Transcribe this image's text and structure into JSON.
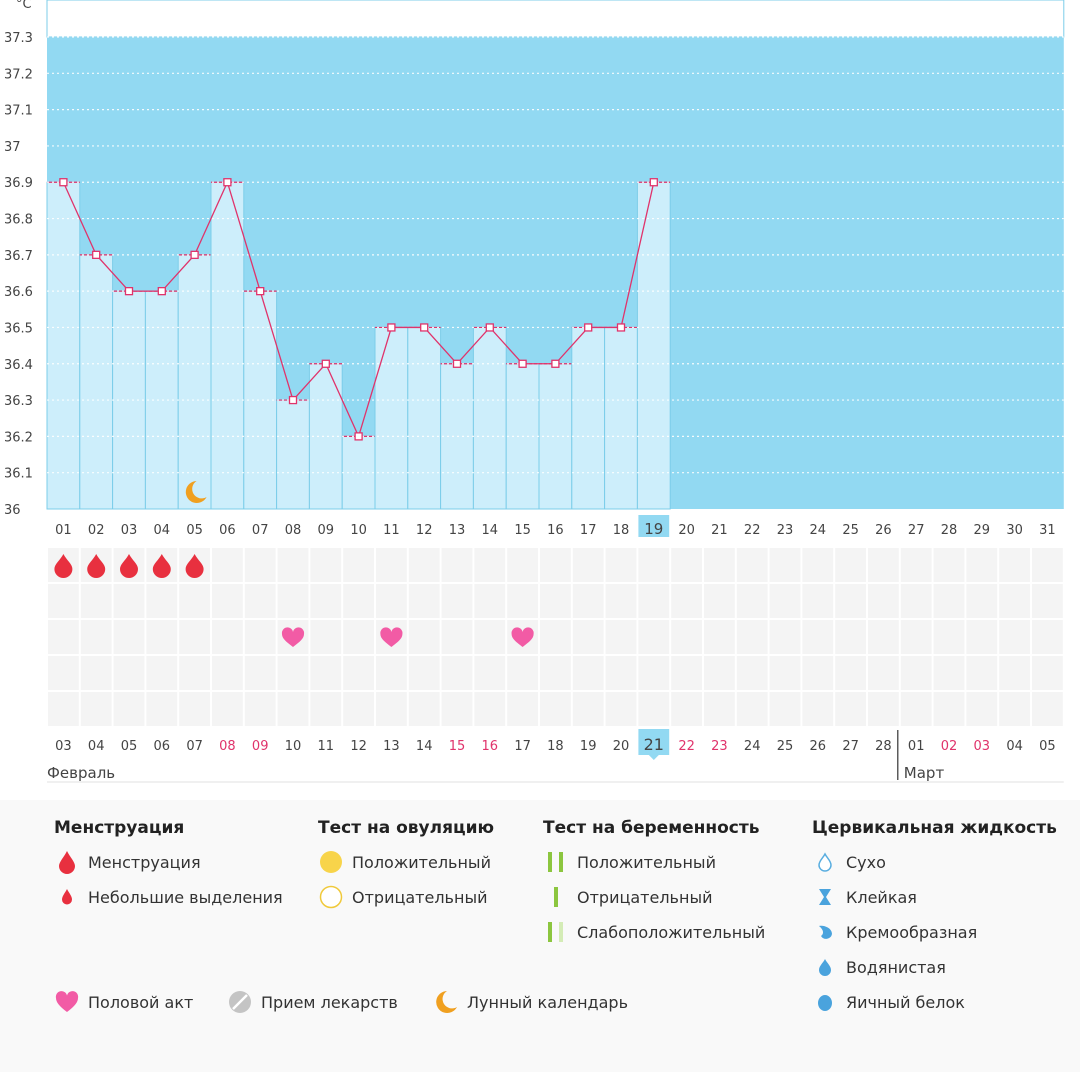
{
  "chart_data": {
    "type": "line",
    "unit": "°C",
    "ylim": [
      36,
      37.3
    ],
    "y_ticks": [
      "36",
      "36.1",
      "36.2",
      "36.3",
      "36.4",
      "36.5",
      "36.6",
      "36.7",
      "36.8",
      "36.9",
      "37",
      "37.1",
      "37.2",
      "37.3"
    ],
    "cycle_days": [
      "01",
      "02",
      "03",
      "04",
      "05",
      "06",
      "07",
      "08",
      "09",
      "10",
      "11",
      "12",
      "13",
      "14",
      "15",
      "16",
      "17",
      "18",
      "19",
      "20",
      "21",
      "22",
      "23",
      "24",
      "25",
      "26",
      "27",
      "28",
      "29",
      "30",
      "31"
    ],
    "temperatures": [
      36.9,
      36.7,
      36.6,
      36.6,
      36.7,
      36.9,
      36.6,
      36.3,
      36.4,
      36.2,
      36.5,
      36.5,
      36.4,
      36.5,
      36.4,
      36.4,
      36.5,
      36.5,
      36.9
    ],
    "current_cycle_day": "19",
    "menstruation_days": [
      "01",
      "02",
      "03",
      "04",
      "05"
    ],
    "intercourse_days": [
      "08",
      "11",
      "15"
    ],
    "lunar_day": "05",
    "dates": [
      "03",
      "04",
      "05",
      "06",
      "07",
      "08",
      "09",
      "10",
      "11",
      "12",
      "13",
      "14",
      "15",
      "16",
      "17",
      "18",
      "19",
      "20",
      "21",
      "22",
      "23",
      "24",
      "25",
      "26",
      "27",
      "28",
      "01",
      "02",
      "03",
      "04",
      "05"
    ],
    "weekend_dates_idx": [
      5,
      6,
      12,
      13,
      19,
      20,
      27,
      28
    ],
    "today_date_idx": 18,
    "months": [
      {
        "label": "Февраль",
        "start_idx": 0
      },
      {
        "label": "Март",
        "start_idx": 26
      }
    ],
    "colors": {
      "bg": "#92d9f2",
      "bar": "#cdeefb",
      "line": "#e0336b",
      "grid_white": "#ffffff",
      "bar_border": "#7ccde9",
      "highlight": "#92d9f2",
      "weekend": "#e0336b",
      "drop": "#e8303f",
      "heart": "#f25ba5",
      "moon": "#f0a020"
    }
  },
  "legend": {
    "menstruation": {
      "title": "Менструация",
      "items": [
        "Менструация",
        "Небольшие выделения"
      ]
    },
    "ovulation_test": {
      "title": "Тест на овуляцию",
      "items": [
        "Положительный",
        "Отрицательный"
      ]
    },
    "pregnancy_test": {
      "title": "Тест на беременность",
      "items": [
        "Положительный",
        "Отрицательный",
        "Слабоположительный"
      ]
    },
    "cervical_fluid": {
      "title": "Цервикальная жидкость",
      "items": [
        "Сухо",
        "Клейкая",
        "Кремообразная",
        "Водянистая",
        "Яичный белок"
      ]
    },
    "other": {
      "intercourse": "Половой акт",
      "medication": "Прием лекарств",
      "lunar": "Лунный календарь"
    }
  }
}
